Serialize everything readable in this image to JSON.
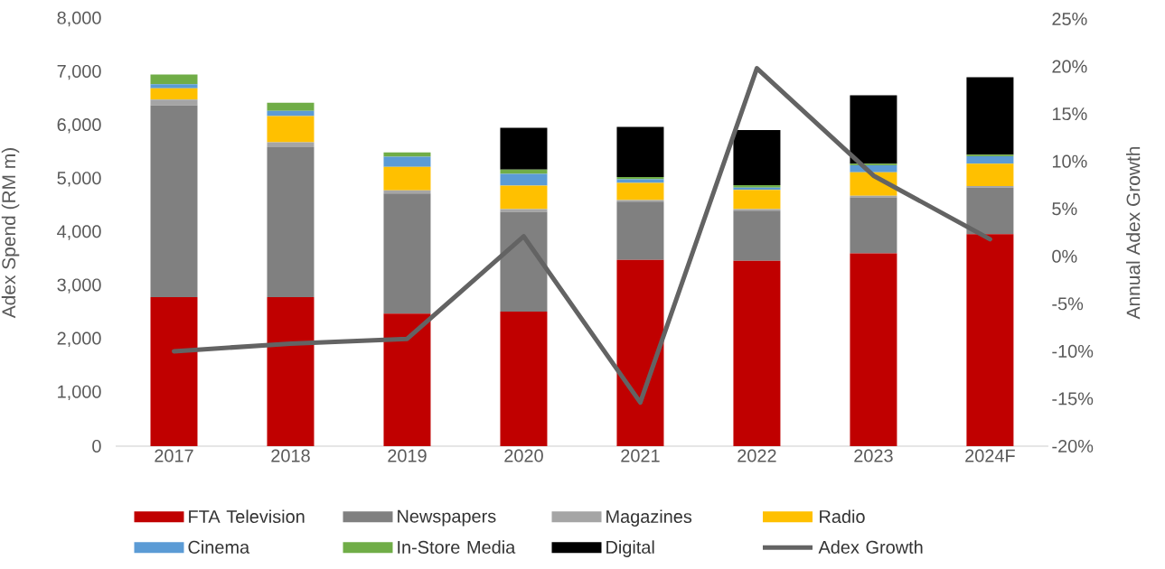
{
  "chart_data": {
    "type": "bar",
    "stacked": true,
    "legend": "bottom",
    "categories": [
      "2017",
      "2018",
      "2019",
      "2020",
      "2021",
      "2022",
      "2023",
      "2024F"
    ],
    "ylabel": "Adex Spend (RM m)",
    "y2label": "Annual Adex Growth",
    "ylim": [
      0,
      8000
    ],
    "yticks": [
      {
        "value": 0,
        "label": "0"
      },
      {
        "value": 1000,
        "label": "1,000"
      },
      {
        "value": 2000,
        "label": "2,000"
      },
      {
        "value": 3000,
        "label": "3,000"
      },
      {
        "value": 4000,
        "label": "4,000"
      },
      {
        "value": 5000,
        "label": "5,000"
      },
      {
        "value": 6000,
        "label": "6,000"
      },
      {
        "value": 7000,
        "label": "7,000"
      },
      {
        "value": 8000,
        "label": "8,000"
      }
    ],
    "y2lim": [
      -20,
      25
    ],
    "y2ticks": [
      {
        "value": -20,
        "label": "-20%"
      },
      {
        "value": -15,
        "label": "-15%"
      },
      {
        "value": -10,
        "label": "-10%"
      },
      {
        "value": -5,
        "label": "-5%"
      },
      {
        "value": 0,
        "label": "0%"
      },
      {
        "value": 5,
        "label": "5%"
      },
      {
        "value": 10,
        "label": "10%"
      },
      {
        "value": 15,
        "label": "15%"
      },
      {
        "value": 20,
        "label": "20%"
      },
      {
        "value": 25,
        "label": "25%"
      }
    ],
    "series": [
      {
        "name": "FTA Television",
        "color": "#c00000",
        "values": [
          2790,
          2790,
          2480,
          2520,
          3490,
          3470,
          3610,
          3970
        ]
      },
      {
        "name": "Newspapers",
        "color": "#808080",
        "values": [
          3590,
          2810,
          2250,
          1870,
          1090,
          940,
          1050,
          870
        ]
      },
      {
        "name": "Magazines",
        "color": "#a5a5a5",
        "values": [
          110,
          90,
          60,
          50,
          30,
          30,
          30,
          30
        ]
      },
      {
        "name": "Radio",
        "color": "#ffc000",
        "values": [
          210,
          490,
          440,
          440,
          320,
          360,
          440,
          420
        ]
      },
      {
        "name": "Cinema",
        "color": "#5b9bd5",
        "values": [
          80,
          100,
          190,
          220,
          70,
          40,
          130,
          140
        ]
      },
      {
        "name": "In-Store Media",
        "color": "#70ad47",
        "values": [
          180,
          150,
          80,
          80,
          40,
          50,
          30,
          30
        ]
      },
      {
        "name": "Digital",
        "color": "#000000",
        "values": [
          null,
          null,
          null,
          780,
          940,
          1030,
          1280,
          1450
        ]
      },
      {
        "name": "Adex Growth",
        "type": "line",
        "axis": "y2",
        "color": "#636363",
        "values": [
          -10.0,
          -9.2,
          -8.7,
          2.1,
          -15.4,
          19.8,
          8.5,
          1.8
        ]
      }
    ]
  }
}
